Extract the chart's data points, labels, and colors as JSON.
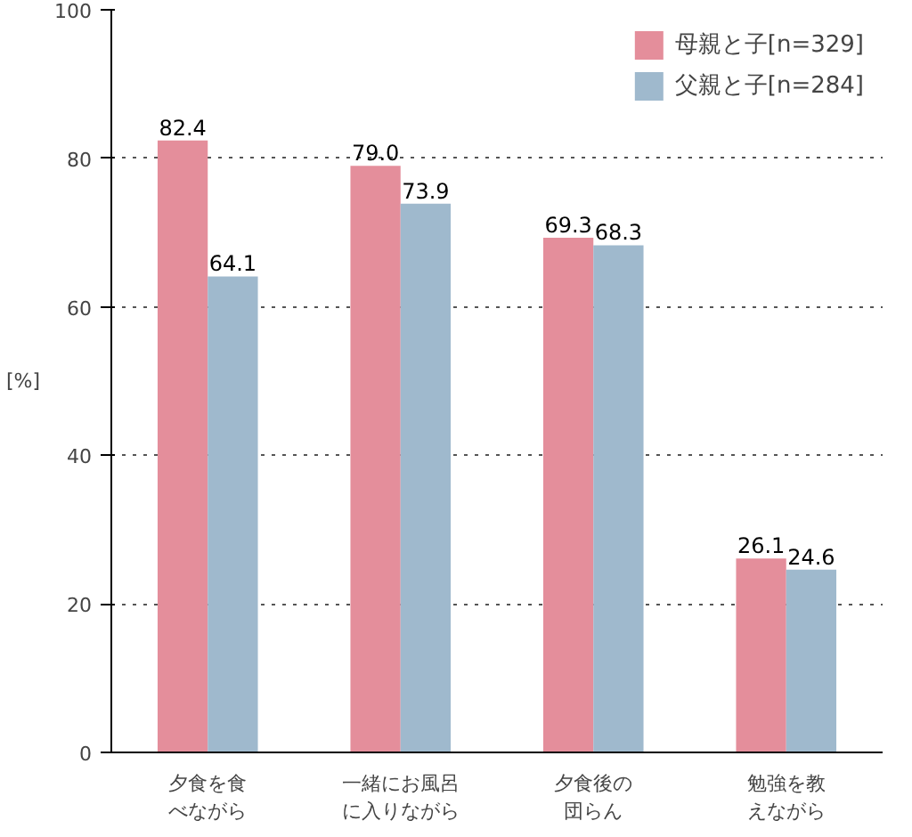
{
  "chart_data": {
    "type": "bar",
    "ylabel": "[%]",
    "categories": [
      "夕食を食べながら",
      "一緒にお風呂に入りながら",
      "夕食後の団らん",
      "勉強を教えながら"
    ],
    "series": [
      {
        "name": "母親と子[n=329]",
        "color": "#e48e9b",
        "values": [
          82.4,
          79.0,
          69.3,
          26.1
        ],
        "value_labels": [
          "82.4",
          "79.0",
          "69.3",
          "26.1"
        ]
      },
      {
        "name": "父親と子[n=284]",
        "color": "#9fb9cd",
        "values": [
          64.1,
          73.9,
          68.3,
          24.6
        ],
        "value_labels": [
          "64.1",
          "73.9",
          "68.3",
          "24.6"
        ]
      }
    ],
    "ylim": [
      0,
      100
    ],
    "yticks": [
      0,
      20,
      40,
      60,
      80,
      100
    ],
    "grid": "y",
    "legend": "top right"
  }
}
